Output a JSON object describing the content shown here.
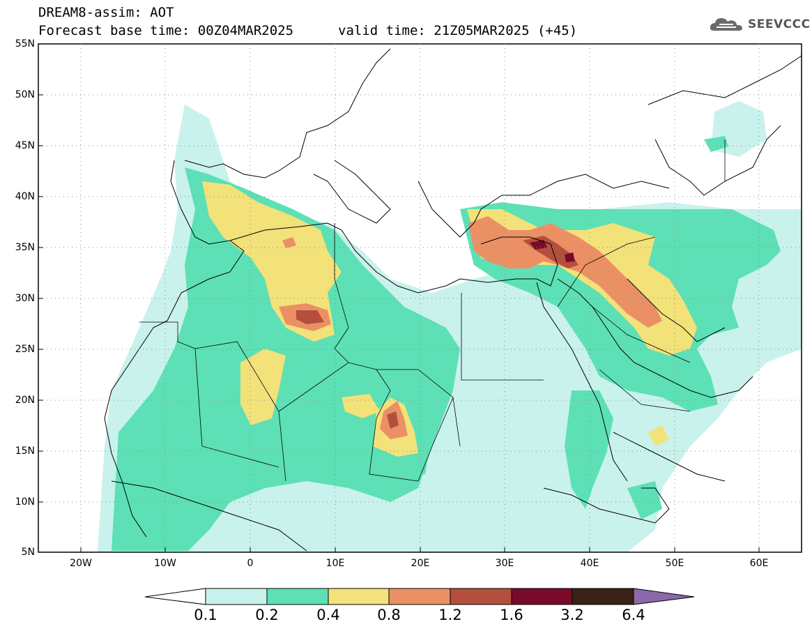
{
  "header": {
    "title": "DREAM8-assim: AOT",
    "base_time": "Forecast base time: 00Z04MAR2025",
    "valid_time": "valid time: 21Z05MAR2025 (+45)",
    "logo_text": "SEEVCCC",
    "logo_icon": "cloud-logo-icon"
  },
  "map": {
    "lat_labels": [
      "55N",
      "50N",
      "45N",
      "40N",
      "35N",
      "30N",
      "25N",
      "20N",
      "15N",
      "10N",
      "5N"
    ],
    "lon_labels": [
      "20W",
      "10W",
      "0",
      "10E",
      "20E",
      "30E",
      "40E",
      "50E",
      "60E"
    ],
    "lat_range": [
      5,
      55
    ],
    "lon_range": [
      -25,
      65
    ],
    "grid": "dotted"
  },
  "colorbar": {
    "levels": [
      "0.1",
      "0.2",
      "0.4",
      "0.8",
      "1.2",
      "1.6",
      "3.2",
      "6.4"
    ],
    "colors": [
      "#c9f2ec",
      "#5de0b5",
      "#f3e17a",
      "#eb9065",
      "#b44f3e",
      "#7a0a2a",
      "#3a2216",
      "#8a6aa8"
    ],
    "extend_low_color": "#ffffff",
    "extend_high_color": "#8a6aa8"
  }
}
